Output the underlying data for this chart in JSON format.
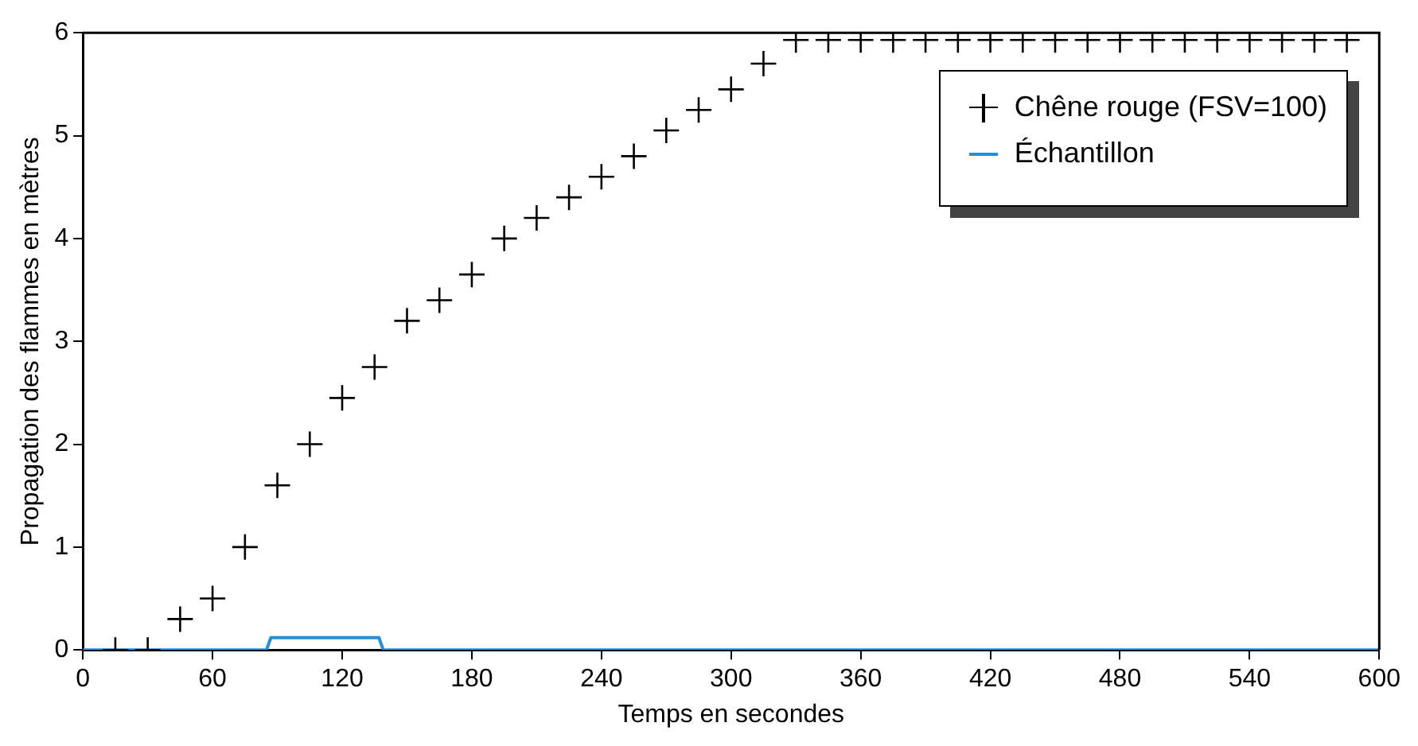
{
  "chart_data": {
    "type": "scatter",
    "xlabel": "Temps en secondes",
    "ylabel": "Propagation des flammes en mètres",
    "xlim": [
      0,
      600
    ],
    "xticks": [
      0,
      60,
      120,
      180,
      240,
      300,
      360,
      420,
      480,
      540,
      600
    ],
    "ylim": [
      0,
      6
    ],
    "yticks": [
      0,
      1,
      2,
      3,
      4,
      5,
      6
    ],
    "grid": false,
    "legend": "top right",
    "series": [
      {
        "name": "Chêne rouge (FSV=100)",
        "marker": "cross",
        "color": "#000000",
        "x": [
          15,
          30,
          45,
          60,
          75,
          90,
          105,
          120,
          135,
          150,
          165,
          180,
          195,
          210,
          225,
          240,
          255,
          270,
          285,
          300,
          315,
          330,
          345,
          360,
          375,
          390,
          405,
          420,
          435,
          450,
          465,
          480,
          495,
          510,
          525,
          540,
          555,
          570,
          585
        ],
        "values": [
          0,
          0,
          0.3,
          0.5,
          1.0,
          1.6,
          2.0,
          2.45,
          2.75,
          3.2,
          3.4,
          3.65,
          4.0,
          4.2,
          4.4,
          4.6,
          4.8,
          5.05,
          5.25,
          5.45,
          5.7,
          5.93,
          5.93,
          5.93,
          5.93,
          5.93,
          5.93,
          5.93,
          5.93,
          5.93,
          5.93,
          5.93,
          5.93,
          5.93,
          5.93,
          5.93,
          5.93,
          5.93,
          5.93
        ]
      },
      {
        "name": "Échantillon",
        "type": "line",
        "marker": "none",
        "line_style": "solid",
        "color": "#1f8fe0",
        "x": [
          0,
          85,
          87,
          137,
          139,
          600
        ],
        "values": [
          0,
          0,
          0.12,
          0.12,
          0,
          0
        ]
      }
    ]
  }
}
